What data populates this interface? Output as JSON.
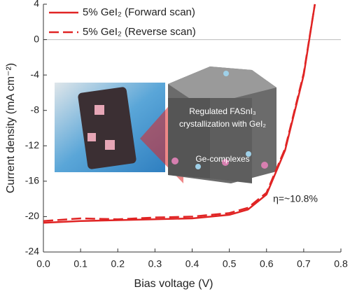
{
  "chart_data": {
    "type": "line",
    "xlabel": "Bias voltage (V)",
    "ylabel": "Current density (mA cm⁻²)",
    "annotations": [
      "η=~10.8%",
      "Regulated FASnI₃",
      "crystallization with GeI₂",
      "Ge-complexes"
    ],
    "xlim": [
      0,
      0.8
    ],
    "xticks": [
      {
        "value": 0,
        "label": "0.0"
      },
      0.1,
      0.2,
      0.3,
      0.4,
      0.5,
      0.6,
      0.7,
      0.8
    ],
    "ylim": [
      -24,
      4
    ],
    "yticks": [
      4,
      0,
      -4,
      -8,
      -12,
      -16,
      -20,
      -24
    ],
    "series": [
      {
        "name": "5% GeI₂ (Forward scan)",
        "color": "#e02424",
        "style": "solid",
        "x": [
          0,
          0.1,
          0.2,
          0.3,
          0.4,
          0.5,
          0.55,
          0.6,
          0.65,
          0.7,
          0.73
        ],
        "values": [
          -20.7,
          -20.5,
          -20.4,
          -20.3,
          -20.2,
          -19.8,
          -19.2,
          -17.5,
          -12.5,
          -4,
          4
        ]
      },
      {
        "name": "5% GeI₂ (Reverse scan)",
        "color": "#e02424",
        "style": "dashed",
        "x": [
          0,
          0.1,
          0.2,
          0.3,
          0.4,
          0.5,
          0.55,
          0.6,
          0.65,
          0.7,
          0.73
        ],
        "values": [
          -20.5,
          -20.2,
          -20.3,
          -20.1,
          -20.0,
          -19.6,
          -19.0,
          -17.3,
          -12.3,
          -3.8,
          4
        ]
      }
    ]
  }
}
